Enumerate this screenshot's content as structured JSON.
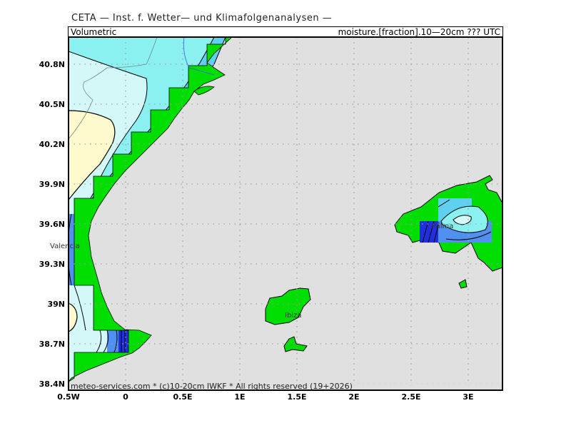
{
  "header": {
    "institute": "CETA — Inst. f. Wetter— und Klimafolgenanalysen —",
    "left_label": "Volumetric",
    "right_label": "moisture.[fraction].10—20cm ??? UTC"
  },
  "map": {
    "region": "Eastern Spain / Balearic Islands",
    "lon_ticks": [
      "0.5W",
      "0",
      "0.5E",
      "1E",
      "1.5E",
      "2E",
      "2.5E",
      "3E"
    ],
    "lat_ticks": [
      "40.8N",
      "40.5N",
      "40.2N",
      "39.9N",
      "39.6N",
      "39.3N",
      "39N",
      "38.7N",
      "38.4N"
    ],
    "cities": {
      "valencia": "Valencia",
      "ibiza": "Ibiza",
      "palma": "Palma"
    },
    "grid": "dotted",
    "colors": {
      "sea": "#e0e0e0",
      "land_green": "#00dd00",
      "pale_cyan": "#d4f8f8",
      "cyan": "#8af0f0",
      "mid_blue": "#60d0f0",
      "blue": "#5090f0",
      "dark_blue": "#2030e0",
      "yellow": "#fffacd"
    }
  },
  "footer": {
    "copyright": "meteo-services.com * (c)10-20cm IWKF * All rights reserved (19+2026)"
  }
}
